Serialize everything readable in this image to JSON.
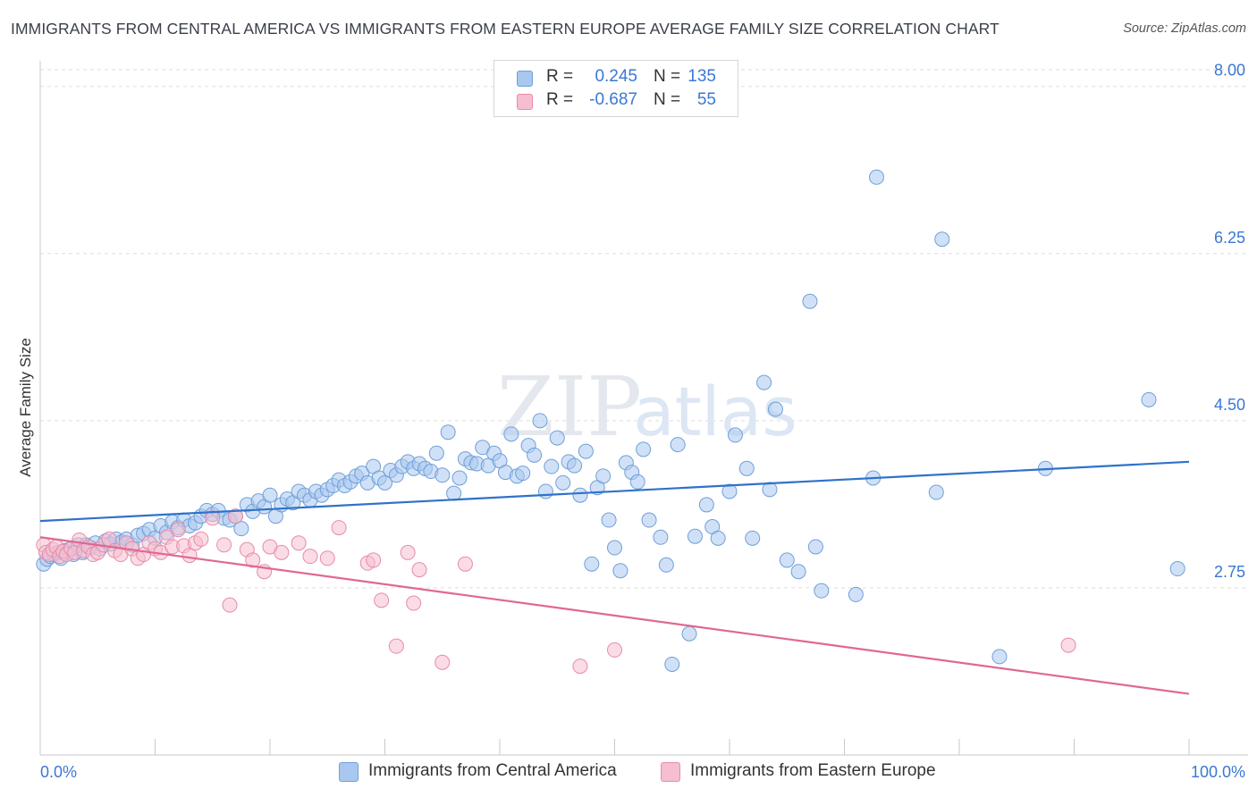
{
  "title": "IMMIGRANTS FROM CENTRAL AMERICA VS IMMIGRANTS FROM EASTERN EUROPE AVERAGE FAMILY SIZE CORRELATION CHART",
  "source": "Source: ZipAtlas.com",
  "watermark": {
    "zip": "ZIP",
    "atlas": "atlas"
  },
  "legend_top": [
    {
      "r_label": "R =",
      "r_value": "0.245",
      "n_label": "N =",
      "n_value": "135"
    },
    {
      "r_label": "R =",
      "r_value": "-0.687",
      "n_label": "N =",
      "n_value": "55"
    }
  ],
  "legend_bottom": [
    {
      "label": "Immigrants from Central America"
    },
    {
      "label": "Immigrants from Eastern Europe"
    }
  ],
  "colors": {
    "blue_fill": "#a9c8f0",
    "blue_stroke": "#6f9fd8",
    "blue_line": "#2f72c9",
    "pink_fill": "#f6bfd0",
    "pink_stroke": "#e88aaa",
    "pink_line": "#e0688f",
    "tick_label": "#3a78d4",
    "grid": "#dddddd"
  },
  "chart_data": {
    "type": "scatter",
    "title": "IMMIGRANTS FROM CENTRAL AMERICA VS IMMIGRANTS FROM EASTERN EUROPE AVERAGE FAMILY SIZE CORRELATION CHART",
    "xlabel": "",
    "ylabel": "Average Family Size",
    "x_tick_labels": [
      "0.0%",
      "100.0%"
    ],
    "y_ticks": [
      2.75,
      4.5,
      6.25,
      8.0
    ],
    "y_tick_labels": [
      "2.75",
      "4.50",
      "6.25",
      "8.00"
    ],
    "xlim": [
      0,
      100
    ],
    "ylim": [
      1.0,
      8.25
    ],
    "grid": true,
    "legend_placement": "top-center",
    "series": [
      {
        "name": "Immigrants from Central America",
        "color": "#6f9fd8",
        "trend": {
          "x": [
            0,
            100
          ],
          "y": [
            3.45,
            4.07
          ]
        },
        "points": [
          {
            "x": 0.3,
            "y": 3.0
          },
          {
            "x": 0.6,
            "y": 3.05
          },
          {
            "x": 0.9,
            "y": 3.08
          },
          {
            "x": 1.2,
            "y": 3.1
          },
          {
            "x": 1.5,
            "y": 3.12
          },
          {
            "x": 1.8,
            "y": 3.06
          },
          {
            "x": 2.1,
            "y": 3.14
          },
          {
            "x": 2.5,
            "y": 3.15
          },
          {
            "x": 2.9,
            "y": 3.1
          },
          {
            "x": 3.3,
            "y": 3.2
          },
          {
            "x": 3.7,
            "y": 3.12
          },
          {
            "x": 4.0,
            "y": 3.2
          },
          {
            "x": 4.4,
            "y": 3.17
          },
          {
            "x": 4.8,
            "y": 3.22
          },
          {
            "x": 5.2,
            "y": 3.16
          },
          {
            "x": 5.7,
            "y": 3.24
          },
          {
            "x": 6.1,
            "y": 3.21
          },
          {
            "x": 6.6,
            "y": 3.26
          },
          {
            "x": 7.1,
            "y": 3.23
          },
          {
            "x": 7.5,
            "y": 3.26
          },
          {
            "x": 8.0,
            "y": 3.2
          },
          {
            "x": 8.5,
            "y": 3.3
          },
          {
            "x": 9.0,
            "y": 3.32
          },
          {
            "x": 9.5,
            "y": 3.36
          },
          {
            "x": 10.0,
            "y": 3.27
          },
          {
            "x": 10.5,
            "y": 3.4
          },
          {
            "x": 11.0,
            "y": 3.33
          },
          {
            "x": 11.5,
            "y": 3.44
          },
          {
            "x": 12.0,
            "y": 3.38
          },
          {
            "x": 12.5,
            "y": 3.46
          },
          {
            "x": 13.0,
            "y": 3.4
          },
          {
            "x": 13.5,
            "y": 3.43
          },
          {
            "x": 14.0,
            "y": 3.5
          },
          {
            "x": 14.5,
            "y": 3.56
          },
          {
            "x": 15.0,
            "y": 3.52
          },
          {
            "x": 15.5,
            "y": 3.56
          },
          {
            "x": 16.0,
            "y": 3.48
          },
          {
            "x": 16.5,
            "y": 3.46
          },
          {
            "x": 17.0,
            "y": 3.5
          },
          {
            "x": 17.5,
            "y": 3.37
          },
          {
            "x": 18.0,
            "y": 3.62
          },
          {
            "x": 18.5,
            "y": 3.55
          },
          {
            "x": 19.0,
            "y": 3.66
          },
          {
            "x": 19.5,
            "y": 3.6
          },
          {
            "x": 20.0,
            "y": 3.72
          },
          {
            "x": 20.5,
            "y": 3.5
          },
          {
            "x": 21.0,
            "y": 3.62
          },
          {
            "x": 21.5,
            "y": 3.68
          },
          {
            "x": 22.0,
            "y": 3.64
          },
          {
            "x": 22.5,
            "y": 3.76
          },
          {
            "x": 23.0,
            "y": 3.72
          },
          {
            "x": 23.5,
            "y": 3.67
          },
          {
            "x": 24.0,
            "y": 3.76
          },
          {
            "x": 24.5,
            "y": 3.72
          },
          {
            "x": 25.0,
            "y": 3.78
          },
          {
            "x": 25.5,
            "y": 3.82
          },
          {
            "x": 26.0,
            "y": 3.88
          },
          {
            "x": 26.5,
            "y": 3.82
          },
          {
            "x": 27.0,
            "y": 3.86
          },
          {
            "x": 27.5,
            "y": 3.92
          },
          {
            "x": 28.0,
            "y": 3.95
          },
          {
            "x": 28.5,
            "y": 3.85
          },
          {
            "x": 29.0,
            "y": 4.02
          },
          {
            "x": 29.5,
            "y": 3.9
          },
          {
            "x": 30.0,
            "y": 3.85
          },
          {
            "x": 30.5,
            "y": 3.98
          },
          {
            "x": 31.0,
            "y": 3.93
          },
          {
            "x": 31.5,
            "y": 4.02
          },
          {
            "x": 32.0,
            "y": 4.07
          },
          {
            "x": 32.5,
            "y": 4.0
          },
          {
            "x": 33.0,
            "y": 4.05
          },
          {
            "x": 33.5,
            "y": 4.0
          },
          {
            "x": 34.0,
            "y": 3.97
          },
          {
            "x": 34.5,
            "y": 4.16
          },
          {
            "x": 35.0,
            "y": 3.93
          },
          {
            "x": 35.5,
            "y": 4.38
          },
          {
            "x": 36.0,
            "y": 3.74
          },
          {
            "x": 36.5,
            "y": 3.9
          },
          {
            "x": 37.0,
            "y": 4.1
          },
          {
            "x": 37.5,
            "y": 4.06
          },
          {
            "x": 38.0,
            "y": 4.05
          },
          {
            "x": 38.5,
            "y": 4.22
          },
          {
            "x": 39.0,
            "y": 4.03
          },
          {
            "x": 39.5,
            "y": 4.16
          },
          {
            "x": 40.0,
            "y": 4.08
          },
          {
            "x": 40.5,
            "y": 3.96
          },
          {
            "x": 41.0,
            "y": 4.36
          },
          {
            "x": 41.5,
            "y": 3.92
          },
          {
            "x": 42.0,
            "y": 3.95
          },
          {
            "x": 42.5,
            "y": 4.24
          },
          {
            "x": 43.0,
            "y": 4.14
          },
          {
            "x": 43.5,
            "y": 4.5
          },
          {
            "x": 44.0,
            "y": 3.76
          },
          {
            "x": 44.5,
            "y": 4.02
          },
          {
            "x": 45.0,
            "y": 4.32
          },
          {
            "x": 45.5,
            "y": 3.85
          },
          {
            "x": 46.0,
            "y": 4.07
          },
          {
            "x": 46.5,
            "y": 4.03
          },
          {
            "x": 47.0,
            "y": 3.72
          },
          {
            "x": 47.5,
            "y": 4.18
          },
          {
            "x": 48.0,
            "y": 3.0
          },
          {
            "x": 48.5,
            "y": 3.8
          },
          {
            "x": 49.0,
            "y": 3.92
          },
          {
            "x": 49.5,
            "y": 3.46
          },
          {
            "x": 50.0,
            "y": 3.17
          },
          {
            "x": 50.5,
            "y": 2.93
          },
          {
            "x": 51.0,
            "y": 4.06
          },
          {
            "x": 51.5,
            "y": 3.96
          },
          {
            "x": 52.0,
            "y": 3.86
          },
          {
            "x": 52.5,
            "y": 4.2
          },
          {
            "x": 53.0,
            "y": 3.46
          },
          {
            "x": 54.0,
            "y": 3.28
          },
          {
            "x": 54.5,
            "y": 2.99
          },
          {
            "x": 55.0,
            "y": 1.95
          },
          {
            "x": 55.5,
            "y": 4.25
          },
          {
            "x": 56.5,
            "y": 2.27
          },
          {
            "x": 57.0,
            "y": 3.29
          },
          {
            "x": 58.0,
            "y": 3.62
          },
          {
            "x": 58.5,
            "y": 3.39
          },
          {
            "x": 59.0,
            "y": 3.27
          },
          {
            "x": 60.0,
            "y": 3.76
          },
          {
            "x": 60.5,
            "y": 4.35
          },
          {
            "x": 61.5,
            "y": 4.0
          },
          {
            "x": 62.0,
            "y": 3.27
          },
          {
            "x": 63.0,
            "y": 4.9
          },
          {
            "x": 63.5,
            "y": 3.78
          },
          {
            "x": 64.0,
            "y": 4.62
          },
          {
            "x": 65.0,
            "y": 3.04
          },
          {
            "x": 66.0,
            "y": 2.92
          },
          {
            "x": 67.0,
            "y": 5.75
          },
          {
            "x": 67.5,
            "y": 3.18
          },
          {
            "x": 68.0,
            "y": 2.72
          },
          {
            "x": 71.0,
            "y": 2.68
          },
          {
            "x": 72.5,
            "y": 3.9
          },
          {
            "x": 72.8,
            "y": 7.05
          },
          {
            "x": 78.0,
            "y": 3.75
          },
          {
            "x": 78.5,
            "y": 6.4
          },
          {
            "x": 83.5,
            "y": 2.03
          },
          {
            "x": 87.5,
            "y": 4.0
          },
          {
            "x": 96.5,
            "y": 4.72
          },
          {
            "x": 99.0,
            "y": 2.95
          }
        ]
      },
      {
        "name": "Immigrants from Eastern Europe",
        "color": "#e88aaa",
        "trend": {
          "x": [
            0,
            100
          ],
          "y": [
            3.28,
            1.64
          ]
        },
        "points": [
          {
            "x": 0.3,
            "y": 3.2
          },
          {
            "x": 0.5,
            "y": 3.12
          },
          {
            "x": 0.8,
            "y": 3.1
          },
          {
            "x": 1.1,
            "y": 3.15
          },
          {
            "x": 1.4,
            "y": 3.18
          },
          {
            "x": 1.7,
            "y": 3.08
          },
          {
            "x": 2.0,
            "y": 3.13
          },
          {
            "x": 2.3,
            "y": 3.1
          },
          {
            "x": 2.7,
            "y": 3.16
          },
          {
            "x": 3.0,
            "y": 3.12
          },
          {
            "x": 3.4,
            "y": 3.25
          },
          {
            "x": 3.8,
            "y": 3.14
          },
          {
            "x": 4.2,
            "y": 3.18
          },
          {
            "x": 4.6,
            "y": 3.1
          },
          {
            "x": 5.0,
            "y": 3.12
          },
          {
            "x": 5.5,
            "y": 3.2
          },
          {
            "x": 6.0,
            "y": 3.26
          },
          {
            "x": 6.5,
            "y": 3.14
          },
          {
            "x": 7.0,
            "y": 3.1
          },
          {
            "x": 7.5,
            "y": 3.22
          },
          {
            "x": 8.0,
            "y": 3.16
          },
          {
            "x": 8.5,
            "y": 3.06
          },
          {
            "x": 9.0,
            "y": 3.1
          },
          {
            "x": 9.5,
            "y": 3.22
          },
          {
            "x": 10.0,
            "y": 3.16
          },
          {
            "x": 10.5,
            "y": 3.12
          },
          {
            "x": 11.0,
            "y": 3.28
          },
          {
            "x": 11.5,
            "y": 3.18
          },
          {
            "x": 12.0,
            "y": 3.36
          },
          {
            "x": 12.5,
            "y": 3.19
          },
          {
            "x": 13.0,
            "y": 3.09
          },
          {
            "x": 13.5,
            "y": 3.22
          },
          {
            "x": 14.0,
            "y": 3.26
          },
          {
            "x": 15.0,
            "y": 3.48
          },
          {
            "x": 16.0,
            "y": 3.2
          },
          {
            "x": 16.5,
            "y": 2.57
          },
          {
            "x": 17.0,
            "y": 3.5
          },
          {
            "x": 18.0,
            "y": 3.15
          },
          {
            "x": 18.5,
            "y": 3.04
          },
          {
            "x": 19.5,
            "y": 2.92
          },
          {
            "x": 20.0,
            "y": 3.18
          },
          {
            "x": 21.0,
            "y": 3.12
          },
          {
            "x": 22.5,
            "y": 3.22
          },
          {
            "x": 23.5,
            "y": 3.08
          },
          {
            "x": 25.0,
            "y": 3.06
          },
          {
            "x": 26.0,
            "y": 3.38
          },
          {
            "x": 28.5,
            "y": 3.01
          },
          {
            "x": 29.0,
            "y": 3.04
          },
          {
            "x": 29.7,
            "y": 2.62
          },
          {
            "x": 31.0,
            "y": 2.14
          },
          {
            "x": 32.0,
            "y": 3.12
          },
          {
            "x": 32.5,
            "y": 2.59
          },
          {
            "x": 33.0,
            "y": 2.94
          },
          {
            "x": 35.0,
            "y": 1.97
          },
          {
            "x": 37.0,
            "y": 3.0
          },
          {
            "x": 47.0,
            "y": 1.93
          },
          {
            "x": 50.0,
            "y": 2.1
          },
          {
            "x": 89.5,
            "y": 2.15
          }
        ]
      }
    ]
  }
}
